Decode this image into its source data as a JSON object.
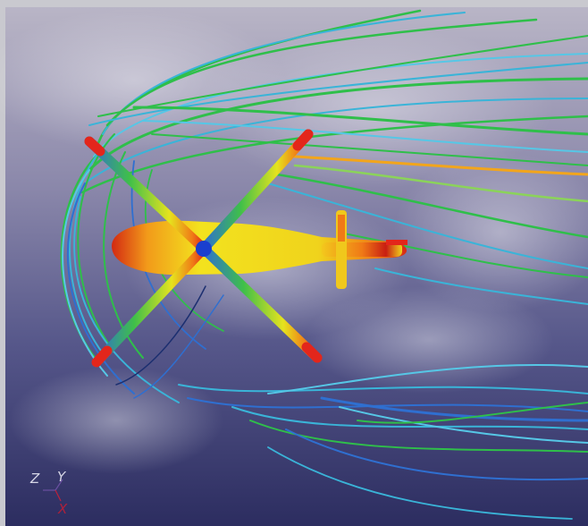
{
  "scene": {
    "subject": "helicopter",
    "visualization": "streamlines",
    "rotor_blades": 4,
    "colors": {
      "background_top": "#b7b3c4",
      "background_mid": "#6a6a98",
      "background_bottom": "#2b2c5e",
      "frame": "#c9c9cf",
      "stream_green": "#2fbf4a",
      "stream_cyan": "#3ab4d8",
      "stream_blue": "#2f6fd0",
      "hot_red": "#e3261b",
      "warm_yellow": "#f2e21c",
      "hub_blue": "#1a3fcf"
    }
  },
  "axes": {
    "z": "Z",
    "y": "Y",
    "x": "X"
  }
}
